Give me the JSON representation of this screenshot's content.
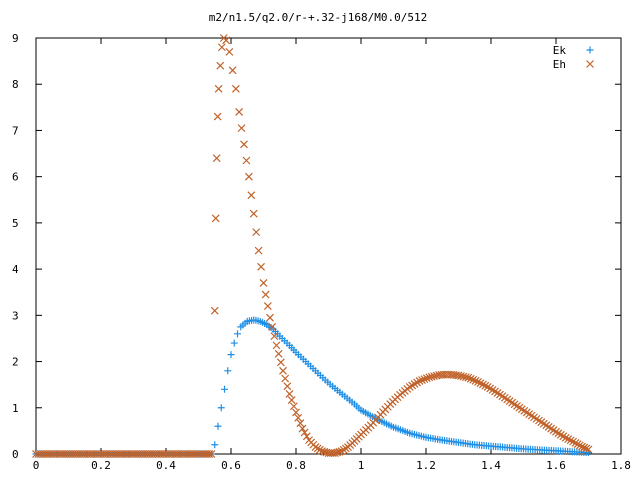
{
  "chart_data": {
    "type": "scatter",
    "title": "m2/n1.5/q2.0/r-+.32-j168/M0.0/512",
    "xlabel": "",
    "ylabel": "",
    "xlim": [
      0,
      1.8
    ],
    "ylim": [
      0,
      9
    ],
    "x_ticks": [
      "0",
      "0.2",
      "0.4",
      "0.6",
      "0.8",
      "1",
      "1.2",
      "1.4",
      "1.6",
      "1.8"
    ],
    "y_ticks": [
      "0",
      "1",
      "2",
      "3",
      "4",
      "5",
      "6",
      "7",
      "8",
      "9"
    ],
    "grid": false,
    "legend_position": "top-right",
    "series": [
      {
        "name": "Ek",
        "marker": "plus",
        "color": "#1f8fe6",
        "points": [
          [
            0.0,
            0
          ],
          [
            0.05,
            0
          ],
          [
            0.1,
            0
          ],
          [
            0.15,
            0
          ],
          [
            0.2,
            0
          ],
          [
            0.25,
            0
          ],
          [
            0.3,
            0
          ],
          [
            0.35,
            0
          ],
          [
            0.4,
            0
          ],
          [
            0.45,
            0
          ],
          [
            0.5,
            0
          ],
          [
            0.54,
            0
          ],
          [
            0.55,
            0.2
          ],
          [
            0.56,
            0.6
          ],
          [
            0.57,
            1.0
          ],
          [
            0.58,
            1.4
          ],
          [
            0.59,
            1.8
          ],
          [
            0.6,
            2.15
          ],
          [
            0.61,
            2.4
          ],
          [
            0.62,
            2.6
          ],
          [
            0.63,
            2.75
          ],
          [
            0.65,
            2.87
          ],
          [
            0.67,
            2.9
          ],
          [
            0.69,
            2.87
          ],
          [
            0.71,
            2.8
          ],
          [
            0.73,
            2.7
          ],
          [
            0.75,
            2.55
          ],
          [
            0.78,
            2.35
          ],
          [
            0.8,
            2.2
          ],
          [
            0.83,
            2.0
          ],
          [
            0.86,
            1.8
          ],
          [
            0.89,
            1.6
          ],
          [
            0.92,
            1.42
          ],
          [
            0.95,
            1.25
          ],
          [
            0.98,
            1.08
          ],
          [
            1.0,
            0.95
          ],
          [
            1.05,
            0.75
          ],
          [
            1.1,
            0.58
          ],
          [
            1.15,
            0.45
          ],
          [
            1.2,
            0.36
          ],
          [
            1.25,
            0.3
          ],
          [
            1.3,
            0.25
          ],
          [
            1.35,
            0.2
          ],
          [
            1.4,
            0.17
          ],
          [
            1.45,
            0.14
          ],
          [
            1.5,
            0.11
          ],
          [
            1.55,
            0.09
          ],
          [
            1.6,
            0.07
          ],
          [
            1.65,
            0.05
          ],
          [
            1.7,
            0.03
          ]
        ]
      },
      {
        "name": "Eh",
        "marker": "cross",
        "color": "#c0622a",
        "points": [
          [
            0.0,
            0
          ],
          [
            0.05,
            0
          ],
          [
            0.1,
            0
          ],
          [
            0.15,
            0
          ],
          [
            0.2,
            0
          ],
          [
            0.25,
            0
          ],
          [
            0.3,
            0
          ],
          [
            0.35,
            0
          ],
          [
            0.4,
            0
          ],
          [
            0.45,
            0
          ],
          [
            0.5,
            0
          ],
          [
            0.54,
            0
          ],
          [
            0.55,
            3.1
          ],
          [
            0.553,
            5.1
          ],
          [
            0.556,
            6.4
          ],
          [
            0.559,
            7.3
          ],
          [
            0.562,
            7.9
          ],
          [
            0.567,
            8.4
          ],
          [
            0.572,
            8.8
          ],
          [
            0.578,
            9.0
          ],
          [
            0.585,
            8.95
          ],
          [
            0.595,
            8.7
          ],
          [
            0.605,
            8.3
          ],
          [
            0.615,
            7.9
          ],
          [
            0.625,
            7.4
          ],
          [
            0.64,
            6.7
          ],
          [
            0.655,
            6.0
          ],
          [
            0.67,
            5.2
          ],
          [
            0.685,
            4.4
          ],
          [
            0.7,
            3.7
          ],
          [
            0.72,
            2.95
          ],
          [
            0.74,
            2.35
          ],
          [
            0.76,
            1.8
          ],
          [
            0.78,
            1.3
          ],
          [
            0.8,
            0.9
          ],
          [
            0.82,
            0.55
          ],
          [
            0.84,
            0.3
          ],
          [
            0.86,
            0.15
          ],
          [
            0.88,
            0.06
          ],
          [
            0.9,
            0.02
          ],
          [
            0.92,
            0.02
          ],
          [
            0.94,
            0.06
          ],
          [
            0.96,
            0.15
          ],
          [
            0.98,
            0.28
          ],
          [
            1.0,
            0.42
          ],
          [
            1.03,
            0.62
          ],
          [
            1.06,
            0.85
          ],
          [
            1.09,
            1.08
          ],
          [
            1.12,
            1.28
          ],
          [
            1.15,
            1.45
          ],
          [
            1.18,
            1.58
          ],
          [
            1.21,
            1.66
          ],
          [
            1.24,
            1.71
          ],
          [
            1.27,
            1.72
          ],
          [
            1.3,
            1.7
          ],
          [
            1.33,
            1.65
          ],
          [
            1.36,
            1.56
          ],
          [
            1.39,
            1.45
          ],
          [
            1.42,
            1.32
          ],
          [
            1.45,
            1.18
          ],
          [
            1.48,
            1.04
          ],
          [
            1.51,
            0.9
          ],
          [
            1.54,
            0.76
          ],
          [
            1.57,
            0.62
          ],
          [
            1.6,
            0.48
          ],
          [
            1.63,
            0.35
          ],
          [
            1.66,
            0.24
          ],
          [
            1.68,
            0.16
          ],
          [
            1.7,
            0.1
          ]
        ]
      }
    ]
  }
}
